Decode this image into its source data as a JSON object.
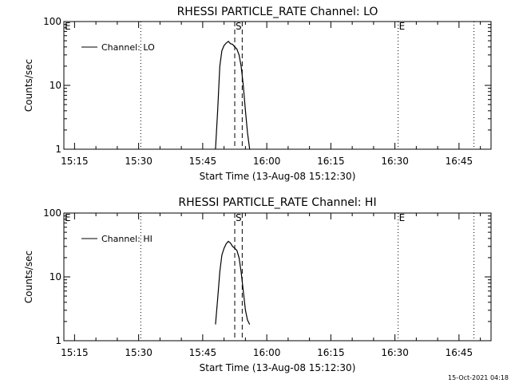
{
  "timestamp": "15-Oct-2021 04:18",
  "chart_data": [
    {
      "type": "line",
      "title": "RHESSI PARTICLE_RATE Channel: LO",
      "xlabel": "Start Time (13-Aug-08 15:12:30)",
      "ylabel": "Counts/sec",
      "x_ticks": [
        "15:15",
        "15:30",
        "15:45",
        "16:00",
        "16:15",
        "16:30",
        "16:45"
      ],
      "y_ticks": [
        "1",
        "10",
        "100"
      ],
      "y_scale": "log",
      "ylim": [
        1,
        100
      ],
      "xlim": [
        "15:12:30",
        "16:52:30"
      ],
      "grid": false,
      "legend": {
        "placement": "top-left",
        "entries": [
          "Channel: LO"
        ]
      },
      "markers": [
        {
          "label": "E",
          "x": "15:12:30",
          "style": "dotted"
        },
        {
          "label": "",
          "x": "15:30:30",
          "style": "dotted"
        },
        {
          "label": "S",
          "x": "15:52:30",
          "style": "dashed"
        },
        {
          "label": "",
          "x": "15:54:15",
          "style": "dashed"
        },
        {
          "label": "E",
          "x": "16:30:45",
          "style": "dotted"
        },
        {
          "label": "",
          "x": "16:48:30",
          "style": "dotted"
        }
      ],
      "series": [
        {
          "name": "Channel: LO",
          "x": [
            "15:48:00",
            "15:48:30",
            "15:49:00",
            "15:49:30",
            "15:50:00",
            "15:50:30",
            "15:51:00",
            "15:51:30",
            "15:52:00",
            "15:52:30",
            "15:53:00",
            "15:53:30",
            "15:54:00",
            "15:54:30",
            "15:55:00",
            "15:55:30",
            "15:56:00"
          ],
          "values": [
            1.0,
            4.0,
            20,
            35,
            42,
            46,
            49,
            45,
            44,
            40,
            37,
            30,
            20,
            10,
            4.0,
            1.8,
            1.0
          ]
        }
      ]
    },
    {
      "type": "line",
      "title": "RHESSI PARTICLE_RATE Channel: HI",
      "xlabel": "Start Time (13-Aug-08 15:12:30)",
      "ylabel": "Counts/sec",
      "x_ticks": [
        "15:15",
        "15:30",
        "15:45",
        "16:00",
        "16:15",
        "16:30",
        "16:45"
      ],
      "y_ticks": [
        "1",
        "10",
        "100"
      ],
      "y_scale": "log",
      "ylim": [
        1,
        100
      ],
      "xlim": [
        "15:12:30",
        "16:52:30"
      ],
      "grid": false,
      "legend": {
        "placement": "top-left",
        "entries": [
          "Channel: HI"
        ]
      },
      "markers": [
        {
          "label": "E",
          "x": "15:12:30",
          "style": "dotted"
        },
        {
          "label": "",
          "x": "15:30:30",
          "style": "dotted"
        },
        {
          "label": "S",
          "x": "15:52:30",
          "style": "dashed"
        },
        {
          "label": "",
          "x": "15:54:15",
          "style": "dashed"
        },
        {
          "label": "E",
          "x": "16:30:45",
          "style": "dotted"
        },
        {
          "label": "",
          "x": "16:48:30",
          "style": "dotted"
        }
      ],
      "series": [
        {
          "name": "Channel: HI",
          "x": [
            "15:48:00",
            "15:48:30",
            "15:49:00",
            "15:49:30",
            "15:50:00",
            "15:50:30",
            "15:51:00",
            "15:51:30",
            "15:52:00",
            "15:52:30",
            "15:53:00",
            "15:53:30",
            "15:54:00",
            "15:54:30",
            "15:55:00",
            "15:55:30",
            "15:56:00"
          ],
          "values": [
            1.8,
            4.5,
            12,
            22,
            28,
            33,
            36,
            34,
            30,
            28,
            26,
            20,
            12,
            6.0,
            3.0,
            2.1,
            1.8
          ]
        }
      ]
    }
  ]
}
